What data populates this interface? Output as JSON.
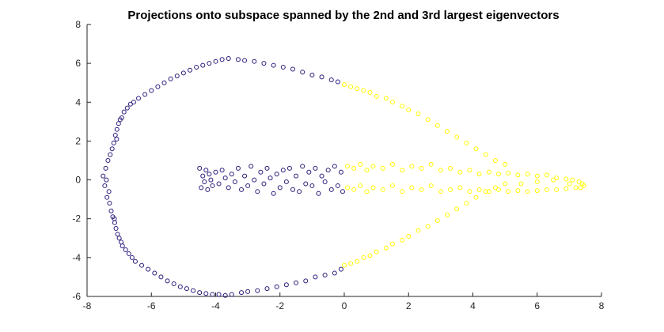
{
  "chart_data": {
    "type": "scatter",
    "title": "Projections onto subspace spanned by the 2nd and 3rd largest eigenvectors",
    "xlabel": "",
    "ylabel": "",
    "xlim": [
      -8,
      8
    ],
    "ylim": [
      -6,
      8
    ],
    "xticks": [
      -8,
      -6,
      -4,
      -2,
      0,
      2,
      4,
      6,
      8
    ],
    "yticks": [
      -6,
      -4,
      -2,
      0,
      2,
      4,
      6,
      8
    ],
    "grid": false,
    "legend": "none",
    "colors": {
      "cluster_1": "#2b1a7a",
      "cluster_2": "#ffff00",
      "axes": "#262626"
    },
    "series": [
      {
        "color": "#2b1a7a",
        "points": [
          [
            -7.5,
            0.2
          ],
          [
            -7.45,
            -0.3
          ],
          [
            -7.42,
            0.6
          ],
          [
            -7.38,
            -0.9
          ],
          [
            -7.35,
            1.0
          ],
          [
            -7.3,
            -1.2
          ],
          [
            -7.28,
            1.3
          ],
          [
            -7.25,
            -1.6
          ],
          [
            -7.22,
            1.6
          ],
          [
            -7.2,
            -1.9
          ],
          [
            -7.17,
            1.9
          ],
          [
            -7.14,
            -2.2
          ],
          [
            -7.12,
            2.3
          ],
          [
            -7.1,
            -2.5
          ],
          [
            -7.07,
            2.6
          ],
          [
            -7.05,
            -2.8
          ],
          [
            -7.02,
            2.9
          ],
          [
            -7.0,
            -3.0
          ],
          [
            -6.97,
            3.1
          ],
          [
            -6.94,
            -3.2
          ],
          [
            -6.92,
            3.2
          ],
          [
            -6.9,
            -3.4
          ],
          [
            -6.85,
            3.5
          ],
          [
            -6.8,
            -3.6
          ],
          [
            -6.75,
            3.7
          ],
          [
            -6.7,
            -3.8
          ],
          [
            -6.65,
            3.9
          ],
          [
            -6.6,
            -4.0
          ],
          [
            -6.55,
            4.0
          ],
          [
            -6.5,
            -4.2
          ],
          [
            -6.4,
            4.2
          ],
          [
            -6.3,
            -4.4
          ],
          [
            -6.2,
            4.4
          ],
          [
            -6.1,
            -4.6
          ],
          [
            -6.0,
            4.6
          ],
          [
            -5.9,
            -4.8
          ],
          [
            -5.8,
            4.8
          ],
          [
            -5.7,
            -5.0
          ],
          [
            -5.6,
            5.0
          ],
          [
            -5.5,
            -5.2
          ],
          [
            -5.4,
            5.2
          ],
          [
            -5.3,
            -5.35
          ],
          [
            -5.2,
            5.35
          ],
          [
            -5.1,
            -5.5
          ],
          [
            -5.0,
            5.5
          ],
          [
            -4.9,
            -5.6
          ],
          [
            -4.8,
            5.65
          ],
          [
            -4.7,
            -5.7
          ],
          [
            -4.6,
            5.8
          ],
          [
            -4.5,
            -5.8
          ],
          [
            -4.4,
            5.9
          ],
          [
            -4.3,
            -5.85
          ],
          [
            -4.2,
            6.0
          ],
          [
            -4.1,
            -5.9
          ],
          [
            -4.0,
            6.1
          ],
          [
            -3.9,
            -5.9
          ],
          [
            -3.8,
            6.2
          ],
          [
            -3.7,
            -5.95
          ],
          [
            -3.6,
            6.25
          ],
          [
            -3.5,
            -5.9
          ],
          [
            -3.3,
            6.2
          ],
          [
            -3.2,
            -5.8
          ],
          [
            -3.1,
            6.15
          ],
          [
            -3.0,
            -5.75
          ],
          [
            -2.8,
            6.1
          ],
          [
            -2.7,
            -5.7
          ],
          [
            -2.5,
            6.0
          ],
          [
            -2.4,
            -5.6
          ],
          [
            -2.2,
            5.9
          ],
          [
            -2.1,
            -5.5
          ],
          [
            -1.9,
            5.8
          ],
          [
            -1.8,
            -5.4
          ],
          [
            -1.6,
            5.7
          ],
          [
            -1.5,
            -5.3
          ],
          [
            -1.3,
            5.55
          ],
          [
            -1.2,
            -5.2
          ],
          [
            -1.0,
            5.4
          ],
          [
            -0.9,
            -5.0
          ],
          [
            -0.7,
            5.3
          ],
          [
            -0.6,
            -4.9
          ],
          [
            -0.4,
            5.15
          ],
          [
            -0.3,
            -4.8
          ],
          [
            -0.2,
            5.05
          ],
          [
            -0.1,
            -4.6
          ],
          [
            -7.4,
            0.0
          ],
          [
            -7.32,
            -0.6
          ],
          [
            -7.15,
            -2.0
          ],
          [
            -7.08,
            2.1
          ],
          [
            -4.5,
            0.6
          ],
          [
            -4.45,
            -0.4
          ],
          [
            -4.4,
            0.2
          ],
          [
            -4.35,
            -0.1
          ],
          [
            -4.3,
            0.5
          ],
          [
            -4.25,
            -0.5
          ],
          [
            -4.2,
            0.3
          ],
          [
            -4.15,
            0.0
          ],
          [
            -4.1,
            -0.3
          ],
          [
            -4.0,
            0.4
          ],
          [
            -3.9,
            -0.2
          ],
          [
            -3.8,
            0.5
          ],
          [
            -3.7,
            0.1
          ],
          [
            -3.6,
            -0.4
          ],
          [
            -3.5,
            0.3
          ],
          [
            -3.4,
            -0.1
          ],
          [
            -3.3,
            0.6
          ],
          [
            -3.2,
            -0.5
          ],
          [
            -3.1,
            0.2
          ],
          [
            -3.0,
            -0.3
          ],
          [
            -2.9,
            0.7
          ],
          [
            -2.8,
            0.0
          ],
          [
            -2.7,
            -0.6
          ],
          [
            -2.6,
            0.4
          ],
          [
            -2.5,
            -0.2
          ],
          [
            -2.4,
            0.6
          ],
          [
            -2.3,
            0.1
          ],
          [
            -2.2,
            -0.7
          ],
          [
            -2.1,
            0.3
          ],
          [
            -2.0,
            -0.4
          ],
          [
            -1.9,
            0.5
          ],
          [
            -1.8,
            -0.1
          ],
          [
            -1.7,
            0.6
          ],
          [
            -1.6,
            -0.5
          ],
          [
            -1.5,
            0.2
          ],
          [
            -1.4,
            -0.6
          ],
          [
            -1.3,
            0.7
          ],
          [
            -1.2,
            -0.2
          ],
          [
            -1.1,
            0.4
          ],
          [
            -1.0,
            -0.3
          ],
          [
            -0.9,
            0.6
          ],
          [
            -0.8,
            -0.7
          ],
          [
            -0.7,
            0.2
          ],
          [
            -0.6,
            -0.1
          ],
          [
            -0.5,
            0.5
          ],
          [
            -0.4,
            -0.5
          ],
          [
            -0.3,
            0.7
          ],
          [
            -0.2,
            -0.3
          ],
          [
            -0.1,
            0.4
          ],
          [
            -0.05,
            -0.6
          ]
        ]
      },
      {
        "color": "#ffff00",
        "points": [
          [
            0.0,
            4.9
          ],
          [
            0.2,
            4.8
          ],
          [
            0.4,
            4.7
          ],
          [
            0.6,
            4.6
          ],
          [
            0.8,
            4.5
          ],
          [
            1.0,
            4.3
          ],
          [
            1.3,
            4.2
          ],
          [
            1.5,
            4.0
          ],
          [
            1.8,
            3.8
          ],
          [
            2.0,
            3.6
          ],
          [
            2.3,
            3.4
          ],
          [
            2.6,
            3.1
          ],
          [
            2.9,
            2.8
          ],
          [
            3.2,
            2.5
          ],
          [
            3.5,
            2.2
          ],
          [
            3.8,
            1.9
          ],
          [
            4.1,
            1.6
          ],
          [
            4.4,
            1.3
          ],
          [
            4.7,
            1.0
          ],
          [
            5.0,
            0.8
          ],
          [
            0.0,
            -4.4
          ],
          [
            0.2,
            -4.3
          ],
          [
            0.4,
            -4.2
          ],
          [
            0.6,
            -4.0
          ],
          [
            0.8,
            -3.9
          ],
          [
            1.0,
            -3.7
          ],
          [
            1.3,
            -3.5
          ],
          [
            1.5,
            -3.3
          ],
          [
            1.8,
            -3.1
          ],
          [
            2.0,
            -2.9
          ],
          [
            2.3,
            -2.6
          ],
          [
            2.6,
            -2.4
          ],
          [
            2.9,
            -2.1
          ],
          [
            3.2,
            -1.8
          ],
          [
            3.5,
            -1.5
          ],
          [
            3.8,
            -1.2
          ],
          [
            4.1,
            -0.9
          ],
          [
            4.4,
            -0.6
          ],
          [
            4.7,
            -0.4
          ],
          [
            5.0,
            -0.2
          ],
          [
            0.1,
            0.7
          ],
          [
            0.3,
            0.6
          ],
          [
            0.5,
            0.8
          ],
          [
            0.7,
            0.5
          ],
          [
            0.9,
            0.7
          ],
          [
            1.2,
            0.6
          ],
          [
            1.5,
            0.8
          ],
          [
            1.8,
            0.5
          ],
          [
            2.1,
            0.7
          ],
          [
            2.4,
            0.6
          ],
          [
            2.7,
            0.8
          ],
          [
            3.0,
            0.5
          ],
          [
            3.3,
            0.6
          ],
          [
            3.6,
            0.4
          ],
          [
            3.9,
            0.5
          ],
          [
            4.2,
            0.3
          ],
          [
            4.5,
            0.4
          ],
          [
            4.8,
            0.3
          ],
          [
            5.1,
            0.35
          ],
          [
            5.4,
            0.25
          ],
          [
            5.7,
            0.3
          ],
          [
            6.0,
            0.2
          ],
          [
            6.3,
            0.25
          ],
          [
            6.6,
            0.1
          ],
          [
            6.9,
            0.05
          ],
          [
            7.1,
            0.0
          ],
          [
            7.3,
            -0.1
          ],
          [
            7.4,
            -0.2
          ],
          [
            7.45,
            -0.3
          ],
          [
            7.35,
            -0.4
          ],
          [
            0.1,
            -0.4
          ],
          [
            0.3,
            -0.5
          ],
          [
            0.5,
            -0.3
          ],
          [
            0.7,
            -0.6
          ],
          [
            0.9,
            -0.4
          ],
          [
            1.2,
            -0.5
          ],
          [
            1.5,
            -0.3
          ],
          [
            1.8,
            -0.6
          ],
          [
            2.1,
            -0.4
          ],
          [
            2.4,
            -0.5
          ],
          [
            2.7,
            -0.3
          ],
          [
            3.0,
            -0.6
          ],
          [
            3.3,
            -0.5
          ],
          [
            3.6,
            -0.4
          ],
          [
            3.9,
            -0.6
          ],
          [
            4.2,
            -0.5
          ],
          [
            4.5,
            -0.6
          ],
          [
            4.8,
            -0.5
          ],
          [
            5.1,
            -0.6
          ],
          [
            5.4,
            -0.55
          ],
          [
            5.7,
            -0.6
          ],
          [
            6.0,
            -0.55
          ],
          [
            6.3,
            -0.5
          ],
          [
            6.6,
            -0.5
          ],
          [
            6.9,
            -0.45
          ],
          [
            7.2,
            -0.4
          ],
          [
            7.0,
            -0.2
          ],
          [
            6.5,
            0.0
          ],
          [
            6.0,
            -0.1
          ],
          [
            5.5,
            -0.2
          ]
        ]
      }
    ]
  }
}
